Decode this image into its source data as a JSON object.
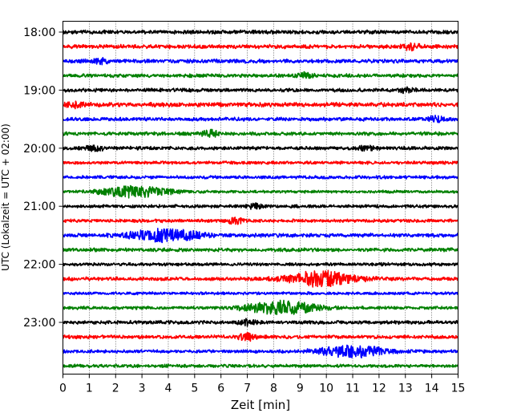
{
  "chart_data": {
    "type": "line",
    "xlabel": "Zeit  [min]",
    "ylabel": "UTC (Lokalzeit = UTC + 02:00)",
    "xlim": [
      0,
      15
    ],
    "x_ticks": [
      0,
      1,
      2,
      3,
      4,
      5,
      6,
      7,
      8,
      9,
      10,
      11,
      12,
      13,
      14,
      15
    ],
    "y_ticks": [
      "18:00",
      "19:00",
      "20:00",
      "21:00",
      "22:00",
      "23:00"
    ],
    "grid": "vertical dotted",
    "row_colors": [
      "#000000",
      "#ff0000",
      "#0000ff",
      "#008000"
    ],
    "traces": [
      {
        "start": "18:00",
        "amp": 0.22,
        "events": []
      },
      {
        "start": "18:15",
        "amp": 0.22,
        "events": [
          {
            "t": 13.2,
            "a": 0.35
          }
        ]
      },
      {
        "start": "18:30",
        "amp": 0.22,
        "events": [
          {
            "t": 1.4,
            "a": 0.3
          }
        ]
      },
      {
        "start": "18:45",
        "amp": 0.2,
        "events": [
          {
            "t": 9.2,
            "a": 0.35
          }
        ]
      },
      {
        "start": "19:00",
        "amp": 0.2,
        "events": [
          {
            "t": 13.0,
            "a": 0.3
          }
        ]
      },
      {
        "start": "19:15",
        "amp": 0.24,
        "events": [
          {
            "t": 0.4,
            "a": 0.35
          }
        ]
      },
      {
        "start": "19:30",
        "amp": 0.2,
        "events": [
          {
            "t": 14.2,
            "a": 0.35
          }
        ]
      },
      {
        "start": "19:45",
        "amp": 0.2,
        "events": [
          {
            "t": 5.6,
            "a": 0.35
          }
        ]
      },
      {
        "start": "20:00",
        "amp": 0.2,
        "events": [
          {
            "t": 1.2,
            "a": 0.3
          },
          {
            "t": 11.5,
            "a": 0.3
          }
        ]
      },
      {
        "start": "20:15",
        "amp": 0.18,
        "events": []
      },
      {
        "start": "20:30",
        "amp": 0.18,
        "events": []
      },
      {
        "start": "20:45",
        "amp": 0.16,
        "events": [
          {
            "t": 2.75,
            "a": 0.7
          }
        ]
      },
      {
        "start": "21:00",
        "amp": 0.18,
        "events": [
          {
            "t": 7.3,
            "a": 0.3
          }
        ]
      },
      {
        "start": "21:15",
        "amp": 0.18,
        "events": [
          {
            "t": 6.6,
            "a": 0.4
          }
        ]
      },
      {
        "start": "21:30",
        "amp": 0.22,
        "events": [
          {
            "t": 3.9,
            "a": 0.75
          }
        ]
      },
      {
        "start": "21:45",
        "amp": 0.2,
        "events": []
      },
      {
        "start": "22:00",
        "amp": 0.18,
        "events": []
      },
      {
        "start": "22:15",
        "amp": 0.2,
        "events": [
          {
            "t": 9.8,
            "a": 0.95
          }
        ]
      },
      {
        "start": "22:30",
        "amp": 0.16,
        "events": []
      },
      {
        "start": "22:45",
        "amp": 0.18,
        "events": [
          {
            "t": 8.3,
            "a": 0.85
          }
        ]
      },
      {
        "start": "23:00",
        "amp": 0.2,
        "events": [
          {
            "t": 7.0,
            "a": 0.3
          }
        ]
      },
      {
        "start": "23:15",
        "amp": 0.2,
        "events": [
          {
            "t": 7.0,
            "a": 0.45
          }
        ]
      },
      {
        "start": "23:30",
        "amp": 0.18,
        "events": [
          {
            "t": 11.0,
            "a": 0.75
          }
        ]
      },
      {
        "start": "23:45",
        "amp": 0.18,
        "events": []
      }
    ]
  }
}
